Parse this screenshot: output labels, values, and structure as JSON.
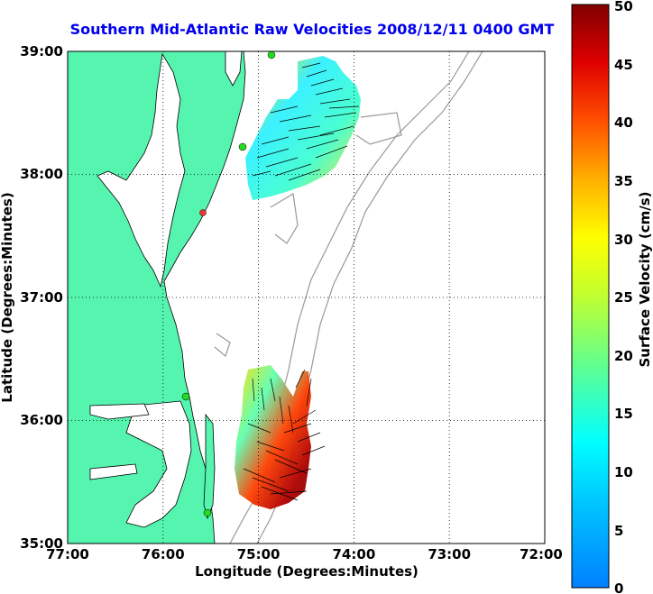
{
  "title": "Southern Mid-Atlantic Raw Velocities 2008/12/11 0400 GMT",
  "x_axis": {
    "label": "Longitude (Degrees:Minutes)",
    "ticks": [
      "77:00",
      "76:00",
      "75:00",
      "74:00",
      "73:00",
      "72:00"
    ],
    "range": [
      -77,
      -72
    ]
  },
  "y_axis": {
    "label": "Latitude (Degrees:Minutes)",
    "ticks": [
      "39:00",
      "38:00",
      "37:00",
      "36:00",
      "35:00"
    ],
    "range": [
      35,
      39
    ]
  },
  "colorbar": {
    "label": "Surface Velocity (cm/s)",
    "ticks": [
      "50",
      "45",
      "40",
      "35",
      "30",
      "25",
      "20",
      "15",
      "10",
      "5",
      "0"
    ],
    "range": [
      0,
      50
    ],
    "colormap": "jet"
  },
  "grid": "dotted",
  "colors": {
    "land": "#55f5b0",
    "title": "#0000ee",
    "bathymetry": "#999999",
    "station": "#22dd22",
    "station_alt": "#ee3333"
  }
}
